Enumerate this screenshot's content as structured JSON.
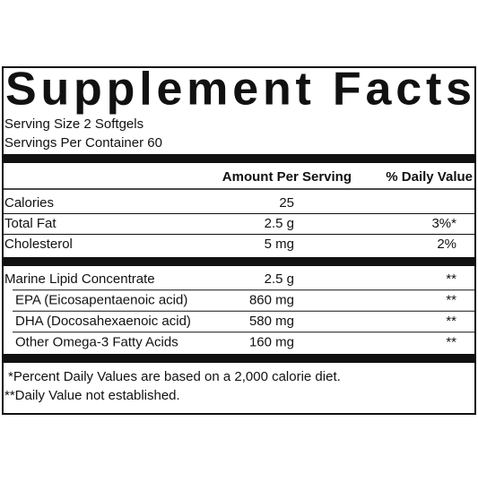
{
  "header": {
    "title": "Supplement Facts",
    "serving_size": "Serving Size 2 Softgels",
    "servings_per_container": "Servings Per Container 60"
  },
  "table": {
    "columns": {
      "amount": "Amount Per Serving",
      "daily_value": "% Daily Value"
    },
    "rows": [
      {
        "name": "Calories",
        "amount": "25"
      },
      {
        "name": "Total Fat",
        "amount": "2.5 g",
        "daily_value": "3%*"
      },
      {
        "name": "Cholesterol",
        "amount": "5 mg",
        "daily_value": "2%"
      }
    ],
    "rows_2": [
      {
        "name": "Marine Lipid Concentrate",
        "amount": "2.5 g",
        "daily_value": "**"
      },
      {
        "name": "EPA (Eicosapentaenoic acid)",
        "amount": "860 mg",
        "daily_value": "**",
        "sub": true
      },
      {
        "name": "DHA (Docosahexaenoic acid)",
        "amount": "580 mg",
        "daily_value": "**",
        "sub": true
      },
      {
        "name": "Other Omega-3 Fatty Acids",
        "amount": "160 mg",
        "daily_value": "**",
        "sub": true
      }
    ]
  },
  "footnotes": [
    "*Percent Daily Values are based on a 2,000 calorie diet.",
    "**Daily Value not established."
  ]
}
